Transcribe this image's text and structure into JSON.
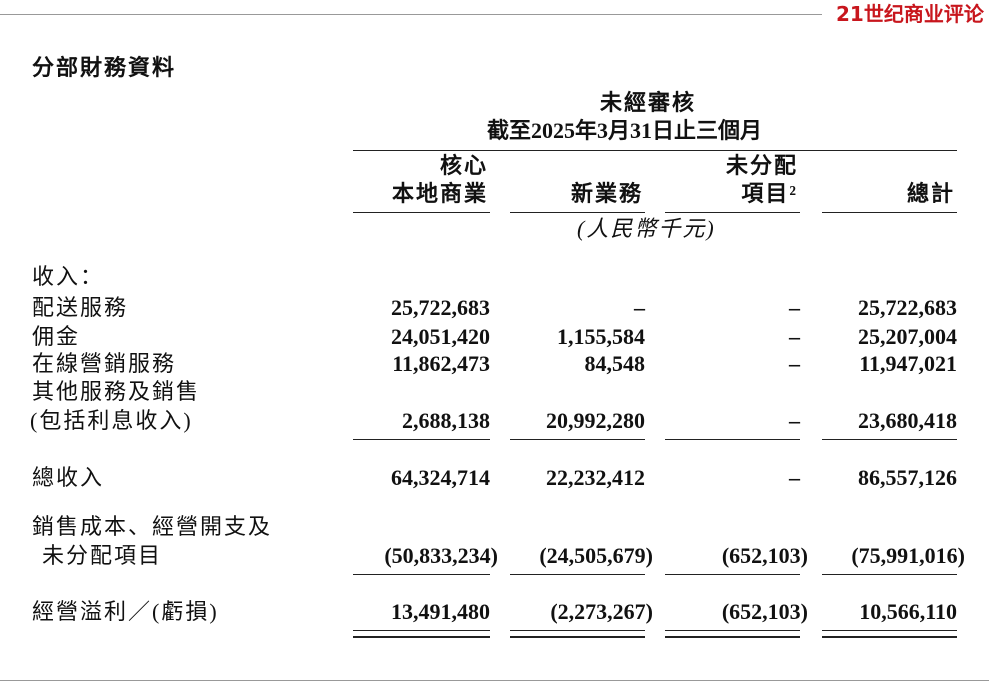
{
  "logo": "21世纪商业评论",
  "title": "分部財務資料",
  "header": {
    "audit": "未經審核",
    "period": "截至2025年3月31日止三個月",
    "columns": [
      [
        "核心",
        "本地商業"
      ],
      [
        "新業務"
      ],
      [
        "未分配",
        "項目²"
      ],
      [
        "總計"
      ]
    ],
    "unit": "(人民幣千元)"
  },
  "rows": [
    {
      "label": [
        "收入："
      ],
      "values": []
    },
    {
      "label": [
        "配送服務"
      ],
      "values": [
        "25,722,683",
        "–",
        "–",
        "25,722,683"
      ]
    },
    {
      "label": [
        "佣金"
      ],
      "values": [
        "24,051,420",
        "1,155,584",
        "–",
        "25,207,004"
      ]
    },
    {
      "label": [
        "在線營銷服務"
      ],
      "values": [
        "11,862,473",
        "84,548",
        "–",
        "11,947,021"
      ]
    },
    {
      "label": [
        "其他服務及銷售",
        "(包括利息收入)"
      ],
      "values": [
        "2,688,138",
        "20,992,280",
        "–",
        "23,680,418"
      ]
    },
    {
      "label": [
        "總收入"
      ],
      "values": [
        "64,324,714",
        "22,232,412",
        "–",
        "86,557,126"
      ]
    },
    {
      "label": [
        "銷售成本、經營開支及",
        "未分配項目"
      ],
      "values": [
        "(50,833,234)",
        "(24,505,679)",
        "(652,103)",
        "(75,991,016)"
      ]
    },
    {
      "label": [
        "經營溢利／(虧損)"
      ],
      "values": [
        "13,491,480",
        "(2,273,267)",
        "(652,103)",
        "10,566,110"
      ]
    }
  ]
}
